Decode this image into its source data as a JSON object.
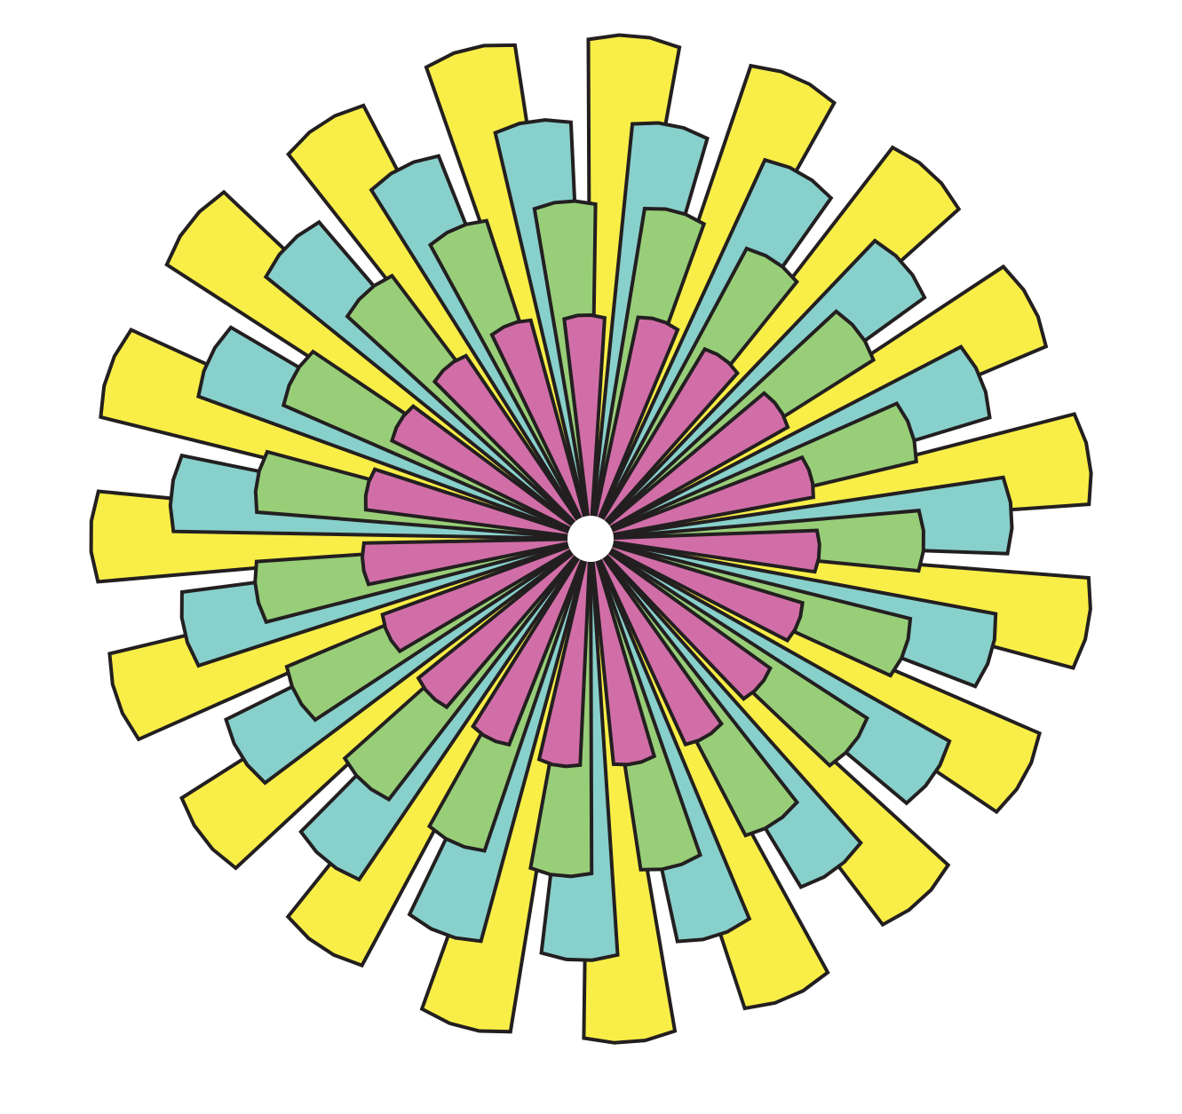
{
  "chart_data": {
    "type": "bar",
    "subtype": "radial-polar-bar",
    "title": "",
    "sectors": 19,
    "grid": false,
    "legend": "none",
    "rmax": 100,
    "series": [
      {
        "color": "#F9EE47",
        "angle_offset_deg": 5.0,
        "values": [
          97,
          97,
          96,
          96,
          97,
          97,
          95,
          94,
          96,
          97,
          97,
          94,
          94,
          96,
          96,
          98,
          98,
          95,
          97
        ]
      },
      {
        "color": "#88D0CB",
        "angle_offset_deg": 11.0,
        "values": [
          81,
          81,
          80,
          81,
          81,
          80,
          80,
          79,
          80,
          81,
          81,
          80,
          79,
          80,
          81,
          81,
          81,
          80,
          81
        ]
      },
      {
        "color": "#98CE78",
        "angle_offset_deg": -4.4,
        "values": [
          65,
          65,
          64,
          65,
          65,
          64,
          64,
          64,
          65,
          65,
          65,
          64,
          64,
          64,
          65,
          65,
          65,
          64,
          65
        ]
      },
      {
        "color": "#D16EA8",
        "angle_offset_deg": -1.6,
        "values": [
          43,
          44,
          43,
          44,
          44,
          44,
          43,
          43,
          44,
          44,
          44,
          43,
          43,
          43,
          44,
          44,
          43,
          43,
          44
        ]
      }
    ],
    "outline_color": "#231F20"
  }
}
